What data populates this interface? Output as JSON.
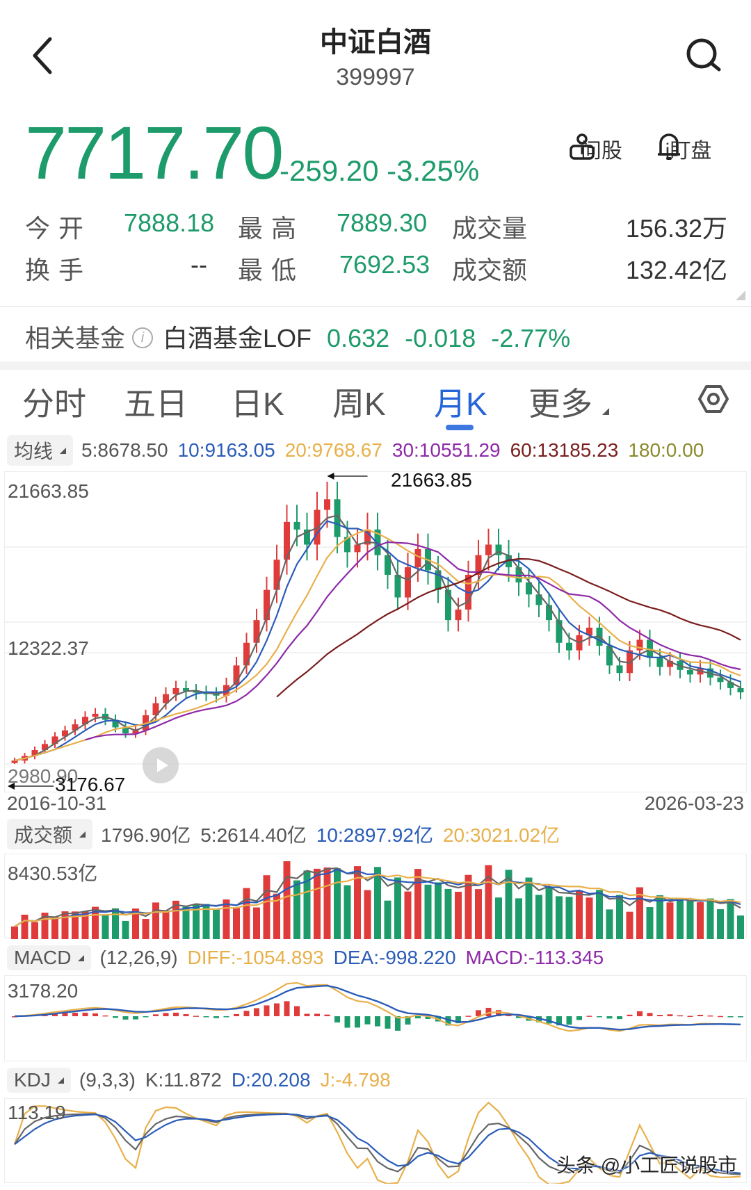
{
  "header": {
    "title": "中证白酒",
    "code": "399997"
  },
  "quote": {
    "price": "7717.70",
    "change": "-259.20",
    "change_pct": "-3.25%",
    "color_down": "#1e9b6a",
    "color_up": "#e03b3b"
  },
  "quick_actions": [
    {
      "label": "问股",
      "icon": "robot-advisor-icon"
    },
    {
      "label": "i盯盘",
      "icon": "bell-icon"
    }
  ],
  "stats": {
    "open_label": "今开",
    "open": "7888.18",
    "high_label": "最高",
    "high": "7889.30",
    "volume_label": "成交量",
    "volume": "156.32万",
    "turnover_label": "换手",
    "turnover": "--",
    "low_label": "最低",
    "low": "7692.53",
    "amount_label": "成交额",
    "amount": "132.42亿"
  },
  "related_fund": {
    "label": "相关基金",
    "name": "白酒基金LOF",
    "price": "0.632",
    "change": "-0.018",
    "change_pct": "-2.77%"
  },
  "tabs": [
    {
      "label": "分时",
      "active": false
    },
    {
      "label": "五日",
      "active": false
    },
    {
      "label": "日K",
      "active": false
    },
    {
      "label": "周K",
      "active": false
    },
    {
      "label": "月K",
      "active": true
    },
    {
      "label": "更多",
      "active": false
    }
  ],
  "ma_legend": {
    "chip": "均线",
    "items": [
      {
        "text": "5:8678.50",
        "color": "#555555"
      },
      {
        "text": "10:9163.05",
        "color": "#2a5cb8"
      },
      {
        "text": "20:9768.67",
        "color": "#e8b04a"
      },
      {
        "text": "30:10551.29",
        "color": "#8e2aa8"
      },
      {
        "text": "60:13185.23",
        "color": "#7a1e1e"
      },
      {
        "text": "180:0.00",
        "color": "#8a8a2a"
      }
    ]
  },
  "price_chart": {
    "y_top": "21663.85",
    "y_mid": "12322.37",
    "y_bottom": "2980.90",
    "max_marker": "21663.85",
    "min_marker": "3176.67",
    "date_start": "2016-10-31",
    "date_end": "2026-03-23"
  },
  "amount_legend": {
    "chip": "成交额",
    "items": [
      {
        "text": "1796.90亿",
        "color": "#555555"
      },
      {
        "text": "5:2614.40亿",
        "color": "#555555"
      },
      {
        "text": "10:2897.92亿",
        "color": "#2a5cb8"
      },
      {
        "text": "20:3021.02亿",
        "color": "#e8b04a"
      }
    ],
    "y_top": "8430.53亿"
  },
  "macd_legend": {
    "chip": "MACD",
    "items": [
      {
        "text": "(12,26,9)",
        "color": "#555555"
      },
      {
        "text": "DIFF:-1054.893",
        "color": "#e8b04a"
      },
      {
        "text": "DEA:-998.220",
        "color": "#2a5cb8"
      },
      {
        "text": "MACD:-113.345",
        "color": "#8e2aa8"
      }
    ],
    "y_top": "3178.20"
  },
  "kdj_legend": {
    "chip": "KDJ",
    "items": [
      {
        "text": "(9,3,3)",
        "color": "#555555"
      },
      {
        "text": "K:11.872",
        "color": "#555555"
      },
      {
        "text": "D:20.208",
        "color": "#2a5cb8"
      },
      {
        "text": "J:-4.798",
        "color": "#e8b04a"
      }
    ],
    "y_top": "113.19"
  },
  "watermark": "头条 @小工匠说股市",
  "chart_data": {
    "type": "candlestick",
    "title": "中证白酒 月K",
    "x_range": [
      "2016-10-31",
      "2026-03-23"
    ],
    "ylim": [
      2980.9,
      21663.85
    ],
    "gridlines": [
      21663.85,
      12322.37,
      2980.9
    ],
    "approx_close_path": [
      3200,
      3500,
      3900,
      4300,
      4800,
      5200,
      5600,
      6100,
      6300,
      5900,
      5400,
      5000,
      5200,
      6200,
      7000,
      7600,
      8000,
      7800,
      7700,
      7600,
      7500,
      8200,
      9500,
      11000,
      12500,
      14500,
      16500,
      19000,
      18500,
      17500,
      19800,
      20500,
      18000,
      17000,
      17500,
      18500,
      16800,
      15500,
      14000,
      16000,
      17200,
      15800,
      14500,
      12500,
      13200,
      15500,
      16800,
      17500,
      16800,
      16000,
      15000,
      14200,
      13500,
      12500,
      11000,
      10500,
      11500,
      12000,
      10800,
      9500,
      9000,
      10500,
      11200,
      10000,
      9400,
      9800,
      9200,
      8900,
      9300,
      8700,
      8400,
      8000,
      7717.7
    ],
    "max": 21663.85,
    "min": 3176.67
  }
}
